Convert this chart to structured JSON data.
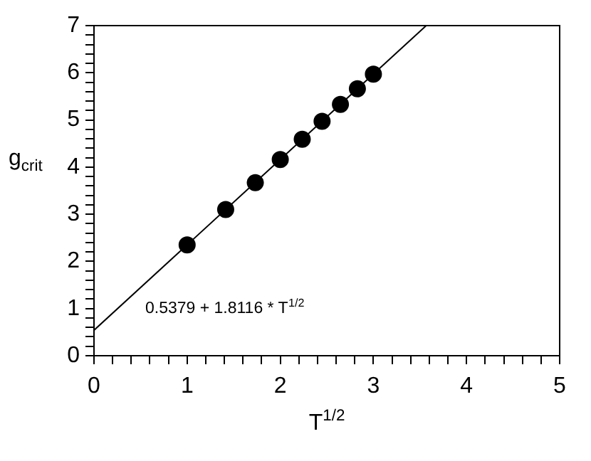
{
  "chart_data": {
    "type": "scatter",
    "xlabel": "T$^{1/2}$",
    "ylabel": "g$_{crit}$",
    "annotations": [
      "0.5379 + 1.8116 * T$^{1/2}$"
    ],
    "series": [
      {
        "type": "scatter",
        "color": "#000000",
        "marker": "circle",
        "x": [
          1,
          1.414,
          1.732,
          2,
          2.236,
          2.449,
          2.646,
          2.828,
          3
        ],
        "values": [
          2.35,
          3.1,
          3.67,
          4.16,
          4.59,
          4.97,
          5.33,
          5.66,
          5.97
        ]
      },
      {
        "type": "line",
        "color": "#000000",
        "marker": "none",
        "line_style": "solid",
        "x": [
          0,
          3.567
        ],
        "values": [
          0.54,
          7
        ]
      }
    ],
    "xlim": [
      0,
      5
    ],
    "ylim": [
      0,
      7
    ],
    "xticks": [
      0,
      {
        "value": 0.2,
        "label": null
      },
      {
        "value": 0.4,
        "label": null
      },
      {
        "value": 0.6,
        "label": null
      },
      {
        "value": 0.8,
        "label": null
      },
      1,
      {
        "value": 1.2,
        "label": null
      },
      {
        "value": 1.4,
        "label": null
      },
      {
        "value": 1.6,
        "label": null
      },
      {
        "value": 1.8,
        "label": null
      },
      2,
      {
        "value": 2.2,
        "label": null
      },
      {
        "value": 2.4,
        "label": null
      },
      {
        "value": 2.6,
        "label": null
      },
      {
        "value": 2.8,
        "label": null
      },
      3,
      {
        "value": 3.2,
        "label": null
      },
      {
        "value": 3.4,
        "label": null
      },
      {
        "value": 3.6,
        "label": null
      },
      {
        "value": 3.8,
        "label": null
      },
      4,
      {
        "value": 4.2,
        "label": null
      },
      {
        "value": 4.4,
        "label": null
      },
      {
        "value": 4.6,
        "label": null
      },
      {
        "value": 4.8,
        "label": null
      },
      5
    ],
    "yticks": [
      0,
      {
        "value": 0.2,
        "label": null
      },
      {
        "value": 0.4,
        "label": null
      },
      {
        "value": 0.6,
        "label": null
      },
      {
        "value": 0.8,
        "label": null
      },
      1,
      {
        "value": 1.2,
        "label": null
      },
      {
        "value": 1.4,
        "label": null
      },
      {
        "value": 1.6,
        "label": null
      },
      {
        "value": 1.8,
        "label": null
      },
      2,
      {
        "value": 2.2,
        "label": null
      },
      {
        "value": 2.4,
        "label": null
      },
      {
        "value": 2.6,
        "label": null
      },
      {
        "value": 2.8,
        "label": null
      },
      3,
      {
        "value": 3.2,
        "label": null
      },
      {
        "value": 3.4,
        "label": null
      },
      {
        "value": 3.6,
        "label": null
      },
      {
        "value": 3.8,
        "label": null
      },
      4,
      {
        "value": 4.2,
        "label": null
      },
      {
        "value": 4.4,
        "label": null
      },
      {
        "value": 4.6,
        "label": null
      },
      {
        "value": 4.8,
        "label": null
      },
      5,
      {
        "value": 5.2,
        "label": null
      },
      {
        "value": 5.4,
        "label": null
      },
      {
        "value": 5.6,
        "label": null
      },
      {
        "value": 5.8,
        "label": null
      },
      6,
      {
        "value": 6.2,
        "label": null
      },
      {
        "value": 6.4,
        "label": null
      },
      {
        "value": 6.6,
        "label": null
      },
      {
        "value": 6.8,
        "label": null
      },
      7
    ],
    "grid": false,
    "legend": false
  }
}
